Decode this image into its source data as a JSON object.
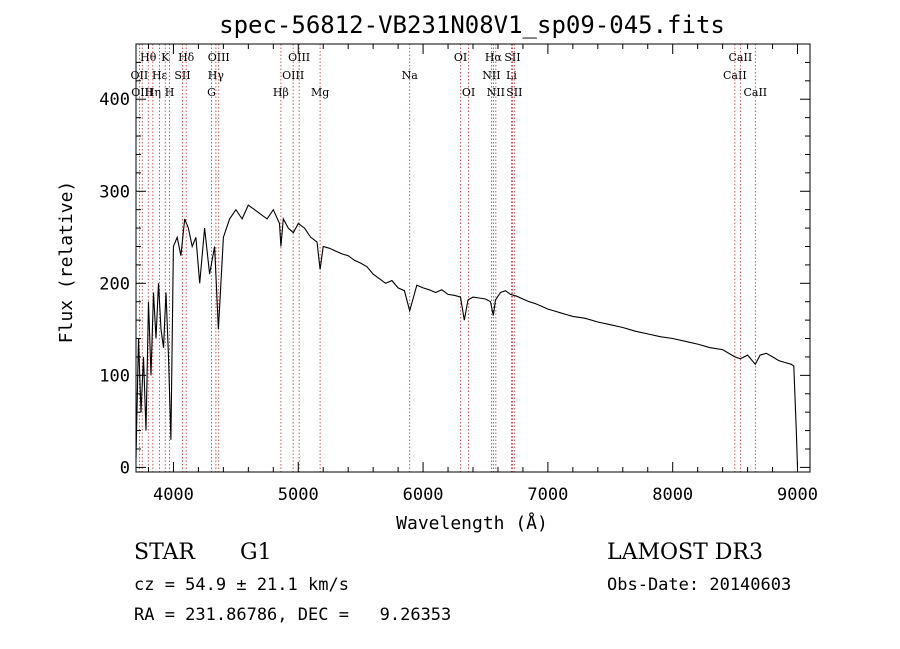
{
  "chart_data": {
    "type": "line",
    "title": "spec-56812-VB231N08V1_sp09-045.fits",
    "xlabel": "Wavelength (Å)",
    "ylabel": "Flux (relative)",
    "xlim": [
      3700,
      9100
    ],
    "ylim": [
      -5,
      460
    ],
    "x_ticks": [
      4000,
      5000,
      6000,
      7000,
      8000,
      9000
    ],
    "y_ticks": [
      0,
      100,
      200,
      300,
      400
    ],
    "grid": false,
    "series": [
      {
        "name": "spectrum",
        "x": [
          3700,
          3720,
          3740,
          3760,
          3780,
          3800,
          3820,
          3840,
          3860,
          3880,
          3900,
          3920,
          3940,
          3960,
          3980,
          4000,
          4030,
          4060,
          4090,
          4120,
          4150,
          4180,
          4210,
          4250,
          4290,
          4330,
          4360,
          4400,
          4450,
          4500,
          4550,
          4600,
          4650,
          4700,
          4750,
          4800,
          4850,
          4861,
          4880,
          4920,
          4960,
          5000,
          5050,
          5100,
          5150,
          5175,
          5200,
          5250,
          5300,
          5350,
          5400,
          5450,
          5500,
          5550,
          5600,
          5650,
          5700,
          5750,
          5800,
          5850,
          5893,
          5950,
          6000,
          6050,
          6100,
          6150,
          6200,
          6250,
          6300,
          6330,
          6360,
          6400,
          6450,
          6500,
          6540,
          6563,
          6580,
          6620,
          6660,
          6700,
          6750,
          6800,
          6850,
          6900,
          6950,
          7000,
          7050,
          7100,
          7150,
          7200,
          7300,
          7400,
          7500,
          7600,
          7700,
          7800,
          7900,
          8000,
          8100,
          8200,
          8300,
          8400,
          8498,
          8542,
          8600,
          8662,
          8700,
          8750,
          8800,
          8850,
          8900,
          8950,
          8970,
          8990,
          9000
        ],
        "y": [
          10,
          140,
          60,
          120,
          40,
          180,
          100,
          190,
          140,
          200,
          150,
          130,
          190,
          120,
          30,
          240,
          250,
          230,
          270,
          260,
          240,
          250,
          200,
          260,
          210,
          240,
          150,
          250,
          270,
          280,
          270,
          285,
          280,
          275,
          270,
          280,
          265,
          240,
          270,
          260,
          255,
          265,
          260,
          250,
          245,
          215,
          240,
          238,
          235,
          232,
          230,
          225,
          222,
          218,
          210,
          205,
          200,
          203,
          195,
          192,
          170,
          198,
          195,
          193,
          190,
          193,
          188,
          187,
          185,
          160,
          182,
          185,
          184,
          183,
          180,
          165,
          182,
          190,
          192,
          188,
          186,
          183,
          180,
          178,
          175,
          172,
          170,
          168,
          166,
          164,
          162,
          158,
          155,
          152,
          148,
          145,
          142,
          140,
          137,
          134,
          130,
          128,
          120,
          118,
          122,
          112,
          122,
          124,
          120,
          116,
          114,
          112,
          110,
          40,
          0
        ]
      }
    ],
    "line_markers": [
      {
        "label": "Hθ",
        "wavelength": 3798,
        "row": 0
      },
      {
        "label": "OII",
        "wavelength": 3727,
        "row": 1
      },
      {
        "label": "OIII",
        "wavelength": 3750,
        "row": 2
      },
      {
        "label": "K",
        "wavelength": 3934,
        "row": 0
      },
      {
        "label": "Hε",
        "wavelength": 3889,
        "row": 1
      },
      {
        "label": "Hη",
        "wavelength": 3835,
        "row": 2
      },
      {
        "label": "H",
        "wavelength": 3969,
        "row": 2
      },
      {
        "label": "Hδ",
        "wavelength": 4102,
        "row": 0
      },
      {
        "label": "SII",
        "wavelength": 4072,
        "row": 1
      },
      {
        "label": "OIII",
        "wavelength": 4363,
        "row": 0
      },
      {
        "label": "Hγ",
        "wavelength": 4340,
        "row": 1
      },
      {
        "label": "G",
        "wavelength": 4305,
        "row": 2
      },
      {
        "label": "Hβ",
        "wavelength": 4861,
        "row": 2
      },
      {
        "label": "OIII",
        "wavelength": 5007,
        "row": 0
      },
      {
        "label": "OIII",
        "wavelength": 4959,
        "row": 1
      },
      {
        "label": "Mg",
        "wavelength": 5175,
        "row": 2
      },
      {
        "label": "Na",
        "wavelength": 5893,
        "row": 1
      },
      {
        "label": "OI",
        "wavelength": 6300,
        "row": 0
      },
      {
        "label": "OI",
        "wavelength": 6364,
        "row": 2
      },
      {
        "label": "Hα",
        "wavelength": 6563,
        "row": 0
      },
      {
        "label": "NII",
        "wavelength": 6548,
        "row": 1
      },
      {
        "label": "NII",
        "wavelength": 6583,
        "row": 2
      },
      {
        "label": "SII",
        "wavelength": 6716,
        "row": 0
      },
      {
        "label": "Li",
        "wavelength": 6708,
        "row": 1
      },
      {
        "label": "SII",
        "wavelength": 6731,
        "row": 2
      },
      {
        "label": "CaII",
        "wavelength": 8542,
        "row": 0
      },
      {
        "label": "CaII",
        "wavelength": 8498,
        "row": 1
      },
      {
        "label": "CaII",
        "wavelength": 8662,
        "row": 2
      }
    ],
    "colors": {
      "line": "#000000",
      "marker": "#b03030",
      "axis": "#000000"
    }
  },
  "info": {
    "class_label": "STAR",
    "subclass": "G1",
    "survey": "LAMOST DR3",
    "redshift_text": "cz = 54.9 ± 21.1 km/s",
    "obs_date_text": "Obs-Date: 20140603",
    "coords_text": "RA = 231.86786, DEC =   9.26353"
  }
}
